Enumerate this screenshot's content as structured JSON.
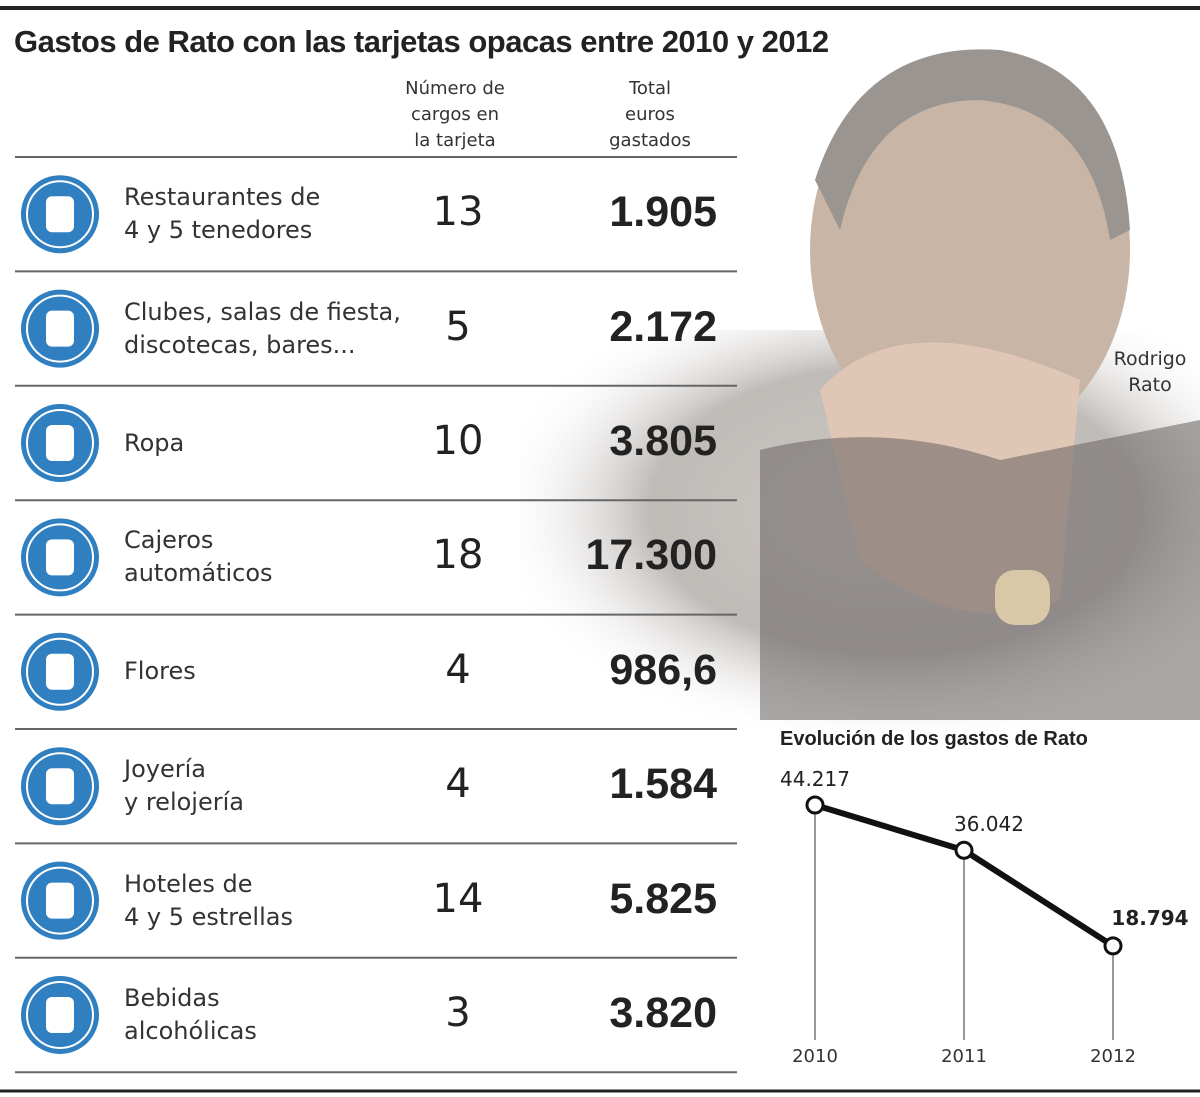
{
  "header": {
    "title": "Gastos de Rato con las tarjetas opacas entre 2010 y 2012"
  },
  "table": {
    "columns": [
      "Número de\ncargos en\nla tarjeta",
      "Total\neuros\ngastados"
    ],
    "rows": [
      [
        "Restaurantes de\n4 y 5 tenedores",
        13,
        "1.905"
      ],
      [
        "Clubes, salas de  fiesta,\ndiscotecas, bares...",
        5,
        "2.172"
      ],
      [
        "Ropa",
        10,
        "3.805"
      ],
      [
        "Cajeros\nautomáticos",
        18,
        "17.300"
      ],
      [
        "Flores",
        4,
        "986,6"
      ],
      [
        "Joyería\ny relojería",
        4,
        "1.584"
      ],
      [
        "Hoteles de\n4 y 5 estrellas",
        14,
        "5.825"
      ],
      [
        "Bebidas\nalcohólicas",
        3,
        "3.820"
      ]
    ]
  },
  "photo": {
    "caption": "Rodrigo\nRato"
  },
  "chart_data": {
    "type": "line",
    "title": "Evolución de los gastos de Rato",
    "categories": [
      "2010",
      "2011",
      "2012"
    ],
    "values": [
      44217,
      36042,
      18794
    ],
    "value_labels": [
      "44.217",
      "36.042",
      "18.794"
    ],
    "color": "#111111"
  }
}
